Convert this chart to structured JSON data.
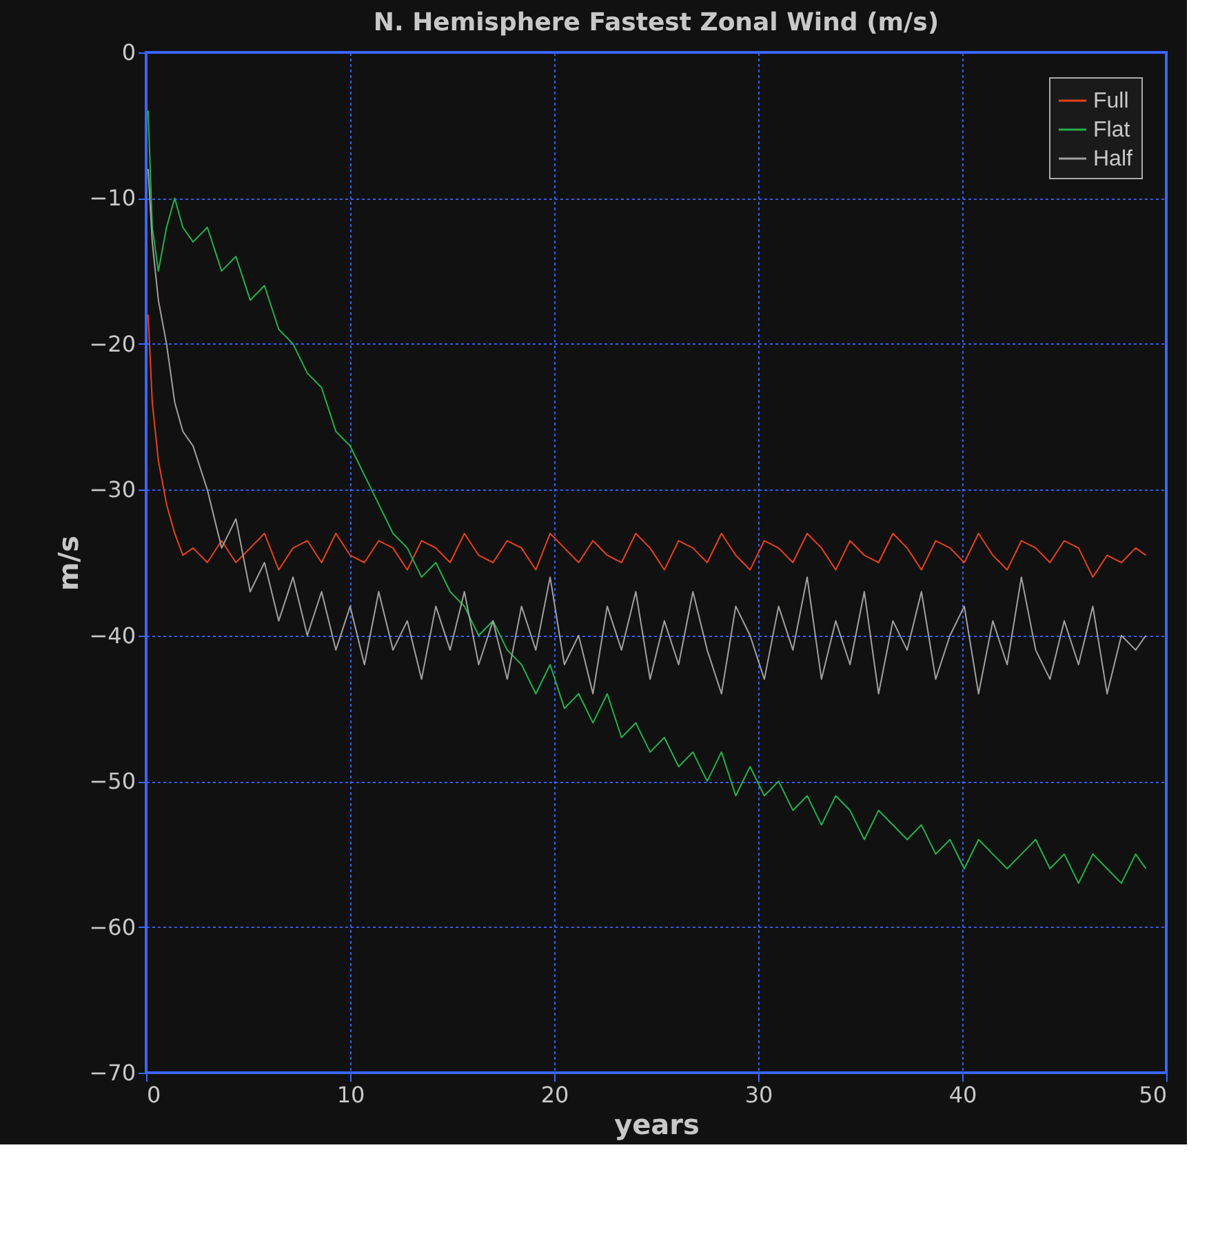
{
  "chart_data": {
    "type": "line",
    "title": "N. Hemisphere Fastest Zonal Wind (m/s)",
    "xlabel": "years",
    "ylabel": "m/s",
    "x": [
      0.1,
      0.3,
      0.6,
      1.0,
      1.4,
      1.8,
      2.3,
      3,
      3.7,
      4.4,
      5.1,
      5.8,
      6.5,
      7.2,
      7.9,
      8.6,
      9.3,
      10,
      10.7,
      11.4,
      12.1,
      12.8,
      13.5,
      14.2,
      14.9,
      15.6,
      16.3,
      17,
      17.7,
      18.4,
      19.1,
      19.8,
      20.5,
      21.2,
      21.9,
      22.6,
      23.3,
      24,
      24.7,
      25.4,
      26.1,
      26.8,
      27.5,
      28.2,
      28.9,
      29.6,
      30.3,
      31,
      31.7,
      32.4,
      33.1,
      33.8,
      34.5,
      35.2,
      35.9,
      36.6,
      37.3,
      38,
      38.7,
      39.4,
      40.1,
      40.8,
      41.5,
      42.2,
      42.9,
      43.6,
      44.3,
      45,
      45.7,
      46.4,
      47.1,
      47.8,
      48.5,
      49
    ],
    "series": [
      {
        "name": "Full",
        "color": "#e8401c",
        "values": [
          -18,
          -24,
          -28,
          -31,
          -33,
          -34.5,
          -34,
          -35,
          -33.5,
          -35,
          -34,
          -33,
          -35.5,
          -34,
          -33.5,
          -35,
          -33,
          -34.5,
          -35,
          -33.5,
          -34,
          -35.5,
          -33.5,
          -34,
          -35,
          -33,
          -34.5,
          -35,
          -33.5,
          -34,
          -35.5,
          -33,
          -34,
          -35,
          -33.5,
          -34.5,
          -35,
          -33,
          -34,
          -35.5,
          -33.5,
          -34,
          -35,
          -33,
          -34.5,
          -35.5,
          -33.5,
          -34,
          -35,
          -33,
          -34,
          -35.5,
          -33.5,
          -34.5,
          -35,
          -33,
          -34,
          -35.5,
          -33.5,
          -34,
          -35,
          -33,
          -34.5,
          -35.5,
          -33.5,
          -34,
          -35,
          -33.5,
          -34,
          -36,
          -34.5,
          -35,
          -34,
          -34.5
        ]
      },
      {
        "name": "Flat",
        "color": "#22b24c",
        "values": [
          -4,
          -12,
          -15,
          -12,
          -10,
          -12,
          -13,
          -12,
          -15,
          -14,
          -17,
          -16,
          -19,
          -20,
          -22,
          -23,
          -26,
          -27,
          -29,
          -31,
          -33,
          -34,
          -36,
          -35,
          -37,
          -38,
          -40,
          -39,
          -41,
          -42,
          -44,
          -42,
          -45,
          -44,
          -46,
          -44,
          -47,
          -46,
          -48,
          -47,
          -49,
          -48,
          -50,
          -48,
          -51,
          -49,
          -51,
          -50,
          -52,
          -51,
          -53,
          -51,
          -52,
          -54,
          -52,
          -53,
          -54,
          -53,
          -55,
          -54,
          -56,
          -54,
          -55,
          -56,
          -55,
          -54,
          -56,
          -55,
          -57,
          -55,
          -56,
          -57,
          -55,
          -56
        ]
      },
      {
        "name": "Half",
        "color": "#a0a0a0",
        "values": [
          -8,
          -13,
          -17,
          -20,
          -24,
          -26,
          -27,
          -30,
          -34,
          -32,
          -37,
          -35,
          -39,
          -36,
          -40,
          -37,
          -41,
          -38,
          -42,
          -37,
          -41,
          -39,
          -43,
          -38,
          -41,
          -37,
          -42,
          -39,
          -43,
          -38,
          -41,
          -36,
          -42,
          -40,
          -44,
          -38,
          -41,
          -37,
          -43,
          -39,
          -42,
          -37,
          -41,
          -44,
          -38,
          -40,
          -43,
          -38,
          -41,
          -36,
          -43,
          -39,
          -42,
          -37,
          -44,
          -39,
          -41,
          -37,
          -43,
          -40,
          -38,
          -44,
          -39,
          -42,
          -36,
          -41,
          -43,
          -39,
          -42,
          -38,
          -44,
          -40,
          -41,
          -40
        ]
      }
    ],
    "xlim": [
      0,
      50
    ],
    "xticks": [
      0,
      10,
      20,
      30,
      40,
      50
    ],
    "ylim": [
      -70,
      0
    ],
    "yticks": [
      0,
      -10,
      -20,
      -30,
      -40,
      -50,
      -60,
      -70
    ],
    "grid": true,
    "legend": "top right",
    "line_style": "solid",
    "marker": "none"
  }
}
